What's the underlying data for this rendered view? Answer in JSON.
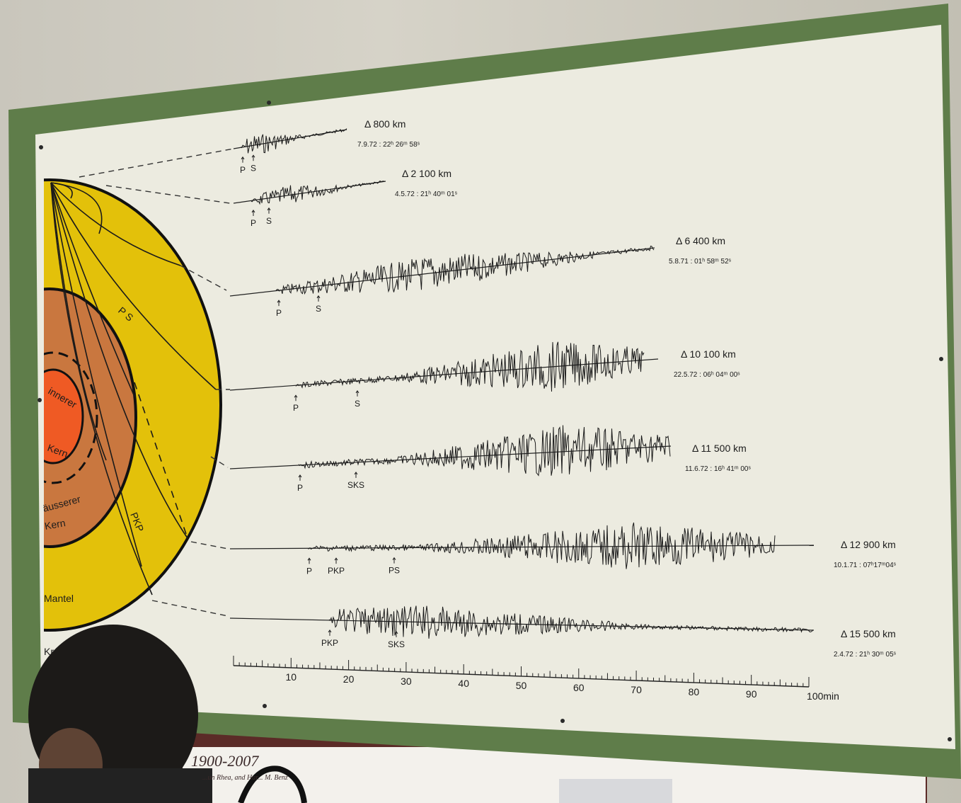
{
  "board": {
    "min_unit": "min",
    "axis_ticks": [
      "10",
      "20",
      "30",
      "40",
      "50",
      "60",
      "70",
      "80",
      "90",
      "100"
    ],
    "axis_unit_label": "100min"
  },
  "earth": {
    "inner_core_label_1": "innerer",
    "inner_core_label_2": "Kern",
    "outer_core_label_1": "äusserer",
    "outer_core_label_2": "Kern",
    "mantle_label": "Mantel",
    "ray_ps_label": "P S",
    "ray_pkp_label": "PKP",
    "crust_label": "Kr"
  },
  "traces": [
    {
      "distance": "Δ  800 km",
      "date": "7.9.72 : 22ʰ 26ᵐ 58ˢ",
      "phases": [
        "P",
        "S"
      ]
    },
    {
      "distance": "Δ  2 100 km",
      "date": "4.5.72 : 21ʰ 40ᵐ 01ˢ",
      "phases": [
        "P",
        "S"
      ]
    },
    {
      "distance": "Δ  6 400 km",
      "date": "5.8.71 : 01ʰ 58ᵐ 52ˢ",
      "phases": [
        "P",
        "S"
      ]
    },
    {
      "distance": "Δ  10 100 km",
      "date": "22.5.72 : 06ʰ 04ᵐ 00ˢ",
      "phases": [
        "P",
        "S"
      ]
    },
    {
      "distance": "Δ  11 500 km",
      "date": "11.6.72 : 16ʰ 41ᵐ 00ˢ",
      "phases": [
        "P",
        "SKS"
      ]
    },
    {
      "distance": "Δ  12 900 km",
      "date": "10.1.71 : 07ʰ17ᵐ04ˢ",
      "phases": [
        "P",
        "PKP",
        "PS"
      ]
    },
    {
      "distance": "Δ  15 500 km",
      "date": "2.4.72 : 21ʰ 30ᵐ 05ˢ",
      "phases": [
        "PKP",
        "SKS"
      ]
    }
  ],
  "poster": {
    "title": "1900-2007",
    "credit": "...un Rhea, and Har... M. Benz"
  },
  "colors": {
    "frame": "#5f7d4a",
    "board": "#ecebe0",
    "mantle": "#e3c10a",
    "outer_core": "#c9773f",
    "inner_core": "#ef5a24"
  }
}
